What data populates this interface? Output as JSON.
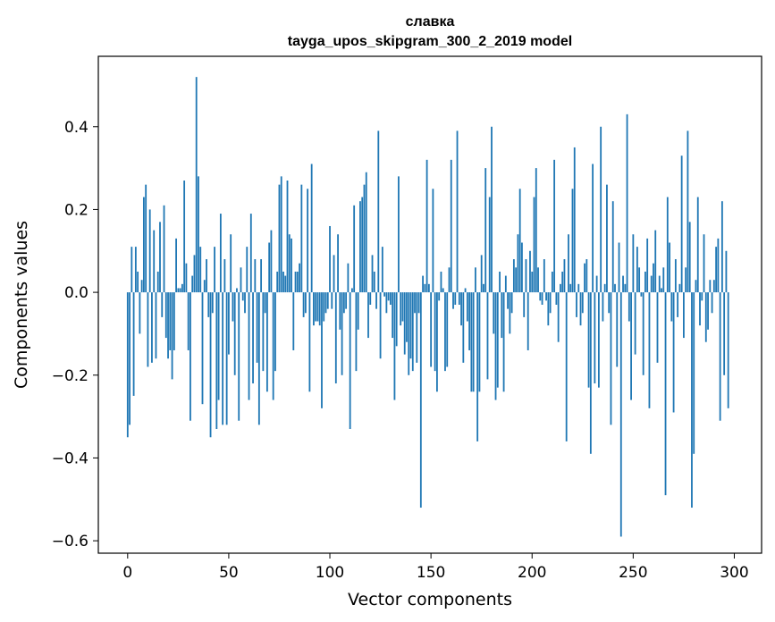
{
  "chart_data": {
    "type": "bar",
    "title": "славка",
    "subtitle": "tayga_upos_skipgram_300_2_2019 model",
    "xlabel": "Vector components",
    "ylabel": "Components values",
    "xlim": [
      -14.5,
      313.5
    ],
    "ylim": [
      -0.63,
      0.57
    ],
    "xticks": [
      0,
      50,
      100,
      150,
      200,
      250,
      300
    ],
    "yticks": [
      -0.6,
      -0.4,
      -0.2,
      0.0,
      0.2,
      0.4
    ],
    "ytick_labels": [
      "−0.6",
      "−0.4",
      "−0.2",
      "0.0",
      "0.2",
      "0.4"
    ],
    "xtick_labels": [
      "0",
      "50",
      "100",
      "150",
      "200",
      "250",
      "300"
    ],
    "grid": false,
    "bar_color": "#1f77b4",
    "values": [
      -0.35,
      -0.32,
      0.11,
      -0.25,
      0.11,
      0.05,
      -0.1,
      0.03,
      0.23,
      0.26,
      -0.18,
      0.2,
      -0.17,
      0.15,
      -0.16,
      0.05,
      0.17,
      -0.06,
      0.21,
      -0.11,
      -0.16,
      -0.14,
      -0.21,
      -0.14,
      0.13,
      0.01,
      0.01,
      0.02,
      0.27,
      0.07,
      -0.14,
      -0.31,
      0.04,
      0.09,
      0.52,
      0.28,
      0.11,
      -0.27,
      0.03,
      0.08,
      -0.06,
      -0.35,
      -0.05,
      0.11,
      -0.33,
      -0.26,
      0.19,
      -0.32,
      0.08,
      -0.32,
      -0.15,
      0.14,
      -0.07,
      -0.2,
      0.01,
      -0.31,
      0.06,
      -0.02,
      -0.05,
      0.11,
      -0.26,
      0.19,
      -0.22,
      0.08,
      -0.17,
      -0.32,
      0.08,
      -0.19,
      -0.05,
      -0.24,
      0.12,
      0.15,
      -0.26,
      -0.19,
      0.05,
      0.26,
      0.28,
      0.05,
      0.04,
      0.27,
      0.14,
      0.13,
      -0.14,
      0.05,
      0.05,
      0.07,
      0.26,
      -0.06,
      -0.05,
      0.25,
      -0.24,
      0.31,
      -0.08,
      -0.07,
      -0.07,
      -0.08,
      -0.28,
      -0.07,
      -0.05,
      -0.04,
      0.16,
      -0.04,
      0.09,
      -0.22,
      0.14,
      -0.09,
      -0.2,
      -0.05,
      -0.04,
      0.07,
      -0.33,
      0.01,
      0.21,
      -0.19,
      -0.09,
      0.22,
      0.23,
      0.26,
      0.29,
      -0.11,
      -0.03,
      0.09,
      0.05,
      -0.04,
      0.39,
      -0.16,
      0.11,
      -0.01,
      -0.05,
      -0.02,
      -0.03,
      -0.11,
      -0.26,
      -0.13,
      0.28,
      -0.08,
      -0.07,
      -0.15,
      -0.12,
      -0.2,
      -0.16,
      -0.19,
      -0.05,
      -0.17,
      -0.05,
      -0.52,
      0.04,
      0.02,
      0.32,
      0.02,
      -0.18,
      0.25,
      -0.19,
      -0.24,
      -0.02,
      0.05,
      0.01,
      -0.19,
      -0.18,
      0.06,
      0.32,
      -0.04,
      -0.03,
      0.39,
      -0.03,
      -0.08,
      -0.17,
      0.01,
      -0.07,
      -0.14,
      -0.24,
      -0.24,
      0.06,
      -0.36,
      -0.24,
      0.09,
      0.02,
      0.3,
      -0.21,
      0.23,
      0.4,
      -0.1,
      -0.26,
      -0.23,
      0.05,
      -0.11,
      -0.24,
      0.04,
      -0.04,
      -0.1,
      -0.05,
      0.08,
      0.06,
      0.14,
      0.25,
      0.12,
      -0.06,
      0.08,
      -0.14,
      0.1,
      0.05,
      0.23,
      0.3,
      0.06,
      -0.02,
      -0.03,
      0.08,
      -0.02,
      -0.08,
      -0.05,
      0.05,
      0.32,
      -0.03,
      -0.12,
      0.02,
      0.05,
      0.08,
      -0.36,
      0.14,
      0.02,
      0.25,
      0.35,
      -0.06,
      0.02,
      -0.08,
      -0.05,
      0.07,
      0.08,
      -0.23,
      -0.39,
      0.31,
      -0.22,
      0.04,
      -0.23,
      0.4,
      -0.07,
      0.02,
      0.26,
      -0.05,
      -0.32,
      0.22,
      0.02,
      -0.18,
      0.12,
      -0.59,
      0.04,
      0.02,
      0.43,
      -0.07,
      -0.26,
      0.14,
      -0.15,
      0.11,
      0.06,
      -0.01,
      -0.2,
      0.05,
      0.13,
      -0.28,
      0.04,
      0.07,
      0.15,
      -0.17,
      0.04,
      0.01,
      0.06,
      -0.49,
      0.23,
      0.12,
      -0.07,
      -0.29,
      0.08,
      -0.06,
      0.02,
      0.33,
      -0.11,
      0.06,
      0.39,
      0.17,
      -0.52,
      -0.39,
      0.03,
      0.23,
      -0.08,
      -0.02,
      0.14,
      -0.12,
      -0.09,
      0.03,
      -0.05,
      0.03,
      0.11,
      0.13,
      -0.31,
      0.22,
      -0.2,
      0.1,
      -0.28
    ]
  }
}
